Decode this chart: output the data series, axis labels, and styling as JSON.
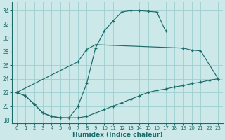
{
  "xlabel": "Humidex (Indice chaleur)",
  "bg_color": "#cce8e8",
  "grid_color": "#9ecece",
  "line_color": "#1a6b6b",
  "xlim": [
    -0.5,
    23.5
  ],
  "ylim": [
    17.5,
    35.2
  ],
  "xticks": [
    0,
    1,
    2,
    3,
    4,
    5,
    6,
    7,
    8,
    9,
    10,
    11,
    12,
    13,
    14,
    15,
    16,
    17,
    18,
    19,
    20,
    21,
    22,
    23
  ],
  "yticks": [
    18,
    20,
    22,
    24,
    26,
    28,
    30,
    32,
    34
  ],
  "c1x": [
    0,
    1,
    2,
    3,
    4,
    5,
    6,
    7,
    8,
    9,
    10,
    11,
    12,
    13,
    14,
    15,
    16,
    17
  ],
  "c1y": [
    22.0,
    21.5,
    20.3,
    19.0,
    18.5,
    18.3,
    18.3,
    20.0,
    23.3,
    28.5,
    31.0,
    32.5,
    33.8,
    34.0,
    34.0,
    33.9,
    33.8,
    31.0
  ],
  "c2x": [
    0,
    7,
    8,
    9,
    19,
    20,
    21,
    23
  ],
  "c2y": [
    22.0,
    26.5,
    28.3,
    29.0,
    28.5,
    28.2,
    28.1,
    24.0
  ],
  "c3x": [
    0,
    1,
    2,
    3,
    4,
    5,
    6,
    7,
    8,
    9,
    10,
    11,
    12,
    13,
    14,
    15,
    16,
    17,
    18,
    19,
    20,
    21,
    22,
    23
  ],
  "c3y": [
    22.0,
    21.5,
    20.3,
    19.0,
    18.5,
    18.3,
    18.3,
    18.3,
    18.5,
    19.0,
    19.5,
    20.0,
    20.5,
    21.0,
    21.5,
    22.0,
    22.3,
    22.5,
    22.8,
    23.0,
    23.3,
    23.5,
    23.8,
    24.0
  ]
}
